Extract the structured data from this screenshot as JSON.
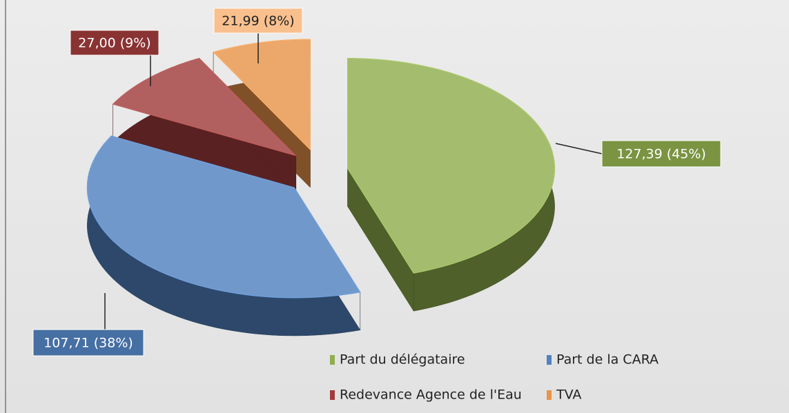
{
  "chart_data": {
    "type": "pie3d",
    "categories": [
      "Part du délégataire",
      "Part de la CARA",
      "Redevance Agence de l'Eau",
      "TVA"
    ],
    "values": [
      127.39,
      107.71,
      27.0,
      21.99
    ],
    "value_labels": [
      "127,39 (45%)",
      "107,71 (38%)",
      "27,00 (9%)",
      "21,99 (8%)"
    ],
    "colors": [
      "#8fae4e",
      "#5282c0",
      "#a23c3c",
      "#e8944a"
    ],
    "legend": "bottom"
  }
}
